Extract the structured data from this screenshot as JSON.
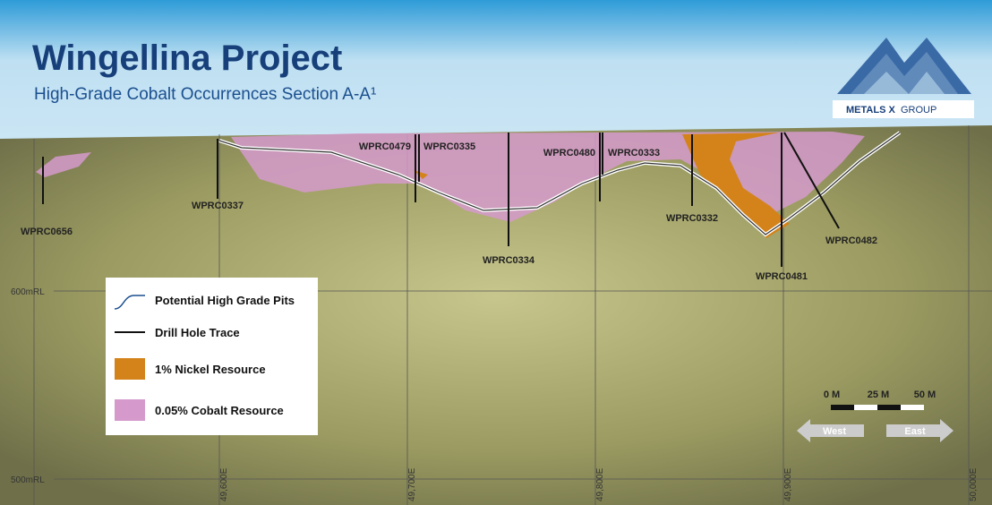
{
  "header": {
    "title": "Wingellina Project",
    "subtitle": "High-Grade Cobalt Occurrences Section A-A¹",
    "logo_bold": "METALS X",
    "logo_light": "GROUP"
  },
  "grid": {
    "elevations": [
      "600mRL",
      "500mRL"
    ],
    "eastings": [
      "49,600E",
      "49,700E",
      "49,800E",
      "49,900E",
      "50,000E"
    ]
  },
  "drill_holes": [
    "WPRC0656",
    "WPRC0337",
    "WPRC0479",
    "WPRC0335",
    "WPRC0334",
    "WPRC0480",
    "WPRC0333",
    "WPRC0332",
    "WPRC0481",
    "WPRC0482"
  ],
  "legend": [
    "Potential High Grade Pits",
    "Drill Hole Trace",
    "1% Nickel Resource",
    "0.05% Cobalt Resource"
  ],
  "scale": [
    "0 M",
    "25 M",
    "50 M"
  ],
  "directions": [
    "West",
    "East"
  ]
}
